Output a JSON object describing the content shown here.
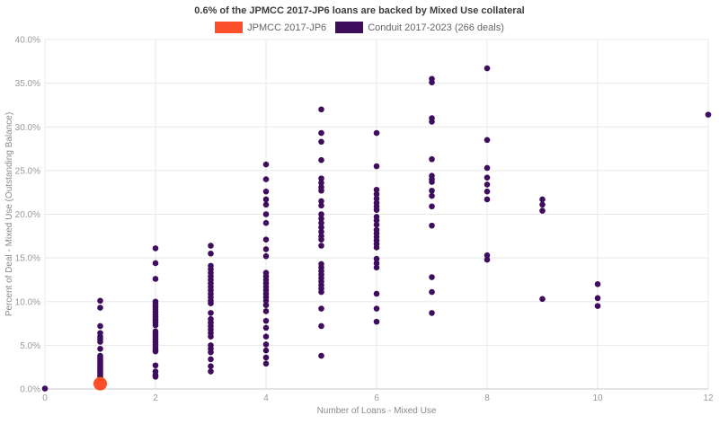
{
  "chart": {
    "title": "0.6% of the JPMCC 2017-JP6 loans are backed by Mixed Use collateral",
    "legend": [
      {
        "label": "JPMCC 2017-JP6",
        "color": "#fb4f2a"
      },
      {
        "label": "Conduit 2017-2023 (266 deals)",
        "color": "#3f0d5e"
      }
    ]
  },
  "chart_data": {
    "type": "scatter",
    "title": "0.6% of the JPMCC 2017-JP6 loans are backed by Mixed Use collateral",
    "xlabel": "Number of Loans - Mixed Use",
    "ylabel": "Percent of Deal - Mixed Use (Outstanding Balance)",
    "xlim": [
      0,
      12
    ],
    "ylim": [
      0,
      40
    ],
    "xticks": [
      0,
      2,
      4,
      6,
      8,
      10,
      12
    ],
    "yticks": [
      0,
      5,
      10,
      15,
      20,
      25,
      30,
      35,
      40
    ],
    "ytick_suffix": "%",
    "grid": true,
    "legend_position": "top-center",
    "colors": {
      "grid": "#e8e8e8",
      "axis": "#c9c9c9",
      "tick_label": "#999999",
      "axis_title": "#8a8a8a"
    },
    "series": [
      {
        "name": "Conduit 2017-2023 (266 deals)",
        "color": "#3f0d5e",
        "marker_size": 3.3,
        "points": [
          [
            0,
            0.05
          ],
          [
            1,
            10.1
          ],
          [
            1,
            9.3
          ],
          [
            1,
            7.2
          ],
          [
            1,
            6.4
          ],
          [
            1,
            6.0
          ],
          [
            1,
            5.7
          ],
          [
            1,
            5.4
          ],
          [
            1,
            4.6
          ],
          [
            1,
            3.8
          ],
          [
            1,
            3.6
          ],
          [
            1,
            3.4
          ],
          [
            1,
            3.2
          ],
          [
            1,
            3.0
          ],
          [
            1,
            2.8
          ],
          [
            1,
            2.6
          ],
          [
            1,
            2.4
          ],
          [
            1,
            2.2
          ],
          [
            1,
            2.0
          ],
          [
            1,
            1.8
          ],
          [
            1,
            1.6
          ],
          [
            1,
            1.4
          ],
          [
            1,
            1.2
          ],
          [
            2,
            16.1
          ],
          [
            2,
            14.4
          ],
          [
            2,
            12.6
          ],
          [
            2,
            10.0
          ],
          [
            2,
            9.7
          ],
          [
            2,
            9.4
          ],
          [
            2,
            9.1
          ],
          [
            2,
            8.8
          ],
          [
            2,
            8.5
          ],
          [
            2,
            8.2
          ],
          [
            2,
            7.9
          ],
          [
            2,
            7.6
          ],
          [
            2,
            7.3
          ],
          [
            2,
            6.6
          ],
          [
            2,
            6.3
          ],
          [
            2,
            6.0
          ],
          [
            2,
            5.7
          ],
          [
            2,
            5.4
          ],
          [
            2,
            5.1
          ],
          [
            2,
            4.8
          ],
          [
            2,
            4.5
          ],
          [
            2,
            4.3
          ],
          [
            2,
            2.7
          ],
          [
            2,
            2.0
          ],
          [
            2,
            1.6
          ],
          [
            2,
            1.4
          ],
          [
            3,
            16.4
          ],
          [
            3,
            15.5
          ],
          [
            3,
            14.1
          ],
          [
            3,
            13.7
          ],
          [
            3,
            13.3
          ],
          [
            3,
            12.9
          ],
          [
            3,
            12.5
          ],
          [
            3,
            12.1
          ],
          [
            3,
            11.7
          ],
          [
            3,
            11.3
          ],
          [
            3,
            10.9
          ],
          [
            3,
            10.5
          ],
          [
            3,
            10.1
          ],
          [
            3,
            9.8
          ],
          [
            3,
            8.7
          ],
          [
            3,
            8.0
          ],
          [
            3,
            7.6
          ],
          [
            3,
            7.2
          ],
          [
            3,
            6.8
          ],
          [
            3,
            6.4
          ],
          [
            3,
            6.0
          ],
          [
            3,
            5.0
          ],
          [
            3,
            4.6
          ],
          [
            3,
            4.2
          ],
          [
            3,
            3.4
          ],
          [
            3,
            2.6
          ],
          [
            3,
            2.0
          ],
          [
            4,
            25.7
          ],
          [
            4,
            24.0
          ],
          [
            4,
            22.6
          ],
          [
            4,
            21.7
          ],
          [
            4,
            21.1
          ],
          [
            4,
            20.0
          ],
          [
            4,
            19.0
          ],
          [
            4,
            17.1
          ],
          [
            4,
            16.0
          ],
          [
            4,
            15.2
          ],
          [
            4,
            13.3
          ],
          [
            4,
            12.9
          ],
          [
            4,
            12.5
          ],
          [
            4,
            12.1
          ],
          [
            4,
            11.7
          ],
          [
            4,
            11.3
          ],
          [
            4,
            10.9
          ],
          [
            4,
            10.5
          ],
          [
            4,
            10.1
          ],
          [
            4,
            9.6
          ],
          [
            4,
            8.9
          ],
          [
            4,
            7.8
          ],
          [
            4,
            7.0
          ],
          [
            4,
            6.0
          ],
          [
            4,
            5.1
          ],
          [
            4,
            4.4
          ],
          [
            4,
            3.6
          ],
          [
            4,
            2.9
          ],
          [
            5,
            32.0
          ],
          [
            5,
            29.3
          ],
          [
            5,
            28.3
          ],
          [
            5,
            26.2
          ],
          [
            5,
            24.1
          ],
          [
            5,
            23.6
          ],
          [
            5,
            23.1
          ],
          [
            5,
            22.7
          ],
          [
            5,
            21.5
          ],
          [
            5,
            21.0
          ],
          [
            5,
            20.0
          ],
          [
            5,
            19.5
          ],
          [
            5,
            19.0
          ],
          [
            5,
            18.5
          ],
          [
            5,
            18.0
          ],
          [
            5,
            17.5
          ],
          [
            5,
            17.1
          ],
          [
            5,
            16.4
          ],
          [
            5,
            14.3
          ],
          [
            5,
            13.9
          ],
          [
            5,
            13.5
          ],
          [
            5,
            13.1
          ],
          [
            5,
            12.7
          ],
          [
            5,
            12.3
          ],
          [
            5,
            11.9
          ],
          [
            5,
            11.5
          ],
          [
            5,
            11.1
          ],
          [
            5,
            9.2
          ],
          [
            5,
            7.2
          ],
          [
            5,
            3.8
          ],
          [
            6,
            29.3
          ],
          [
            6,
            25.5
          ],
          [
            6,
            22.8
          ],
          [
            6,
            22.3
          ],
          [
            6,
            21.8
          ],
          [
            6,
            21.3
          ],
          [
            6,
            20.9
          ],
          [
            6,
            20.5
          ],
          [
            6,
            19.7
          ],
          [
            6,
            19.3
          ],
          [
            6,
            18.8
          ],
          [
            6,
            18.2
          ],
          [
            6,
            17.8
          ],
          [
            6,
            17.4
          ],
          [
            6,
            17.0
          ],
          [
            6,
            16.6
          ],
          [
            6,
            16.2
          ],
          [
            6,
            14.9
          ],
          [
            6,
            14.4
          ],
          [
            6,
            13.9
          ],
          [
            6,
            10.9
          ],
          [
            6,
            9.2
          ],
          [
            6,
            7.7
          ],
          [
            7,
            35.5
          ],
          [
            7,
            35.1
          ],
          [
            7,
            31.0
          ],
          [
            7,
            30.6
          ],
          [
            7,
            26.3
          ],
          [
            7,
            24.4
          ],
          [
            7,
            24.0
          ],
          [
            7,
            23.7
          ],
          [
            7,
            22.7
          ],
          [
            7,
            22.1
          ],
          [
            7,
            20.9
          ],
          [
            7,
            18.7
          ],
          [
            7,
            12.8
          ],
          [
            7,
            11.1
          ],
          [
            7,
            8.7
          ],
          [
            8,
            36.7
          ],
          [
            8,
            28.5
          ],
          [
            8,
            25.3
          ],
          [
            8,
            24.2
          ],
          [
            8,
            23.4
          ],
          [
            8,
            22.6
          ],
          [
            8,
            21.7
          ],
          [
            8,
            15.3
          ],
          [
            8,
            14.8
          ],
          [
            9,
            21.7
          ],
          [
            9,
            21.1
          ],
          [
            9,
            20.4
          ],
          [
            9,
            10.3
          ],
          [
            10,
            12.0
          ],
          [
            10,
            10.4
          ],
          [
            10,
            9.5
          ],
          [
            12,
            31.4
          ]
        ]
      },
      {
        "name": "JPMCC 2017-JP6",
        "color": "#fb4f2a",
        "marker_size": 7.5,
        "points": [
          [
            1,
            0.6
          ]
        ]
      }
    ]
  }
}
